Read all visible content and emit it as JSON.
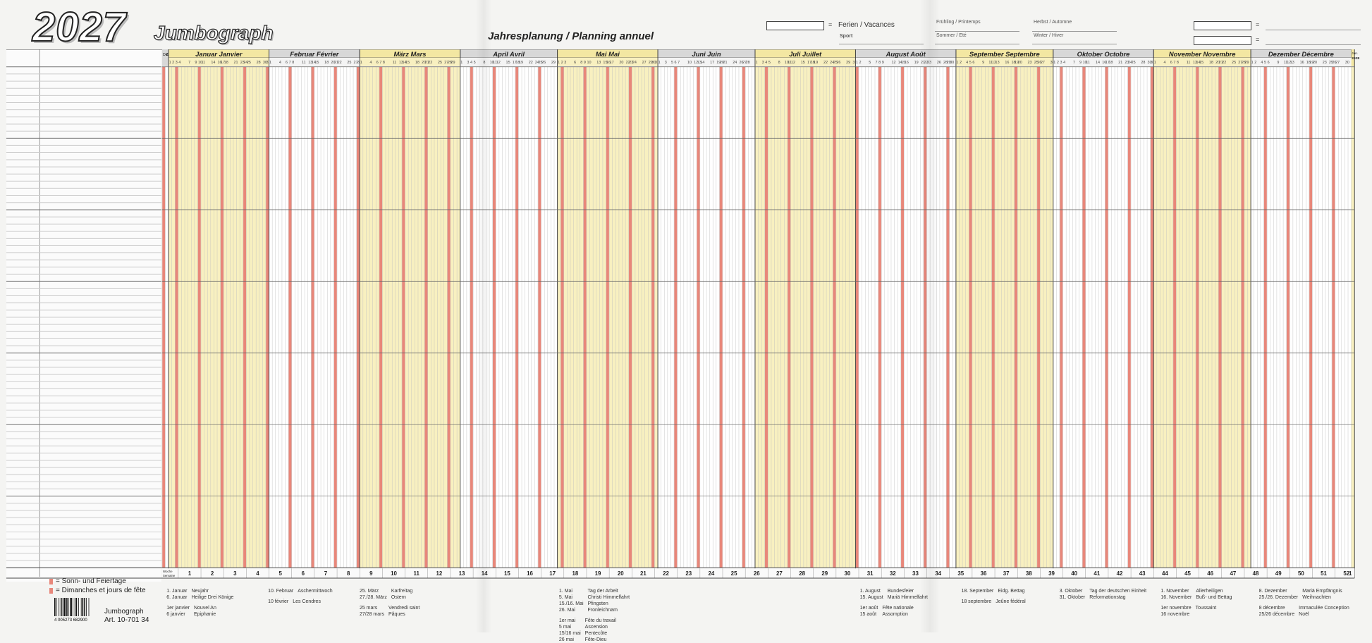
{
  "header": {
    "year": "2027",
    "brand": "Jumbograph",
    "subtitle": "Jahresplanung / Planning annuel",
    "legend_ferien": "Ferien / Vacances",
    "legend_sport": "Sport",
    "season_spring": "Frühling / Printemps",
    "season_summer": "Sommer / Eté",
    "season_autumn": "Herbst / Automne",
    "season_winter": "Winter / Hiver",
    "eq": "="
  },
  "prev_month": "Dez. Déc.",
  "prev_year": "2026",
  "next_month": "Jan.",
  "next_year": "2028",
  "months": [
    {
      "de": "Januar",
      "fr": "Janvier",
      "days": 31,
      "startDow": 4
    },
    {
      "de": "Februar",
      "fr": "Février",
      "days": 28,
      "startDow": 0
    },
    {
      "de": "März",
      "fr": "Mars",
      "days": 31,
      "startDow": 0
    },
    {
      "de": "April",
      "fr": "Avril",
      "days": 30,
      "startDow": 3
    },
    {
      "de": "Mai",
      "fr": "Mai",
      "days": 31,
      "startDow": 5
    },
    {
      "de": "Juni",
      "fr": "Juin",
      "days": 30,
      "startDow": 1
    },
    {
      "de": "Juli",
      "fr": "Juillet",
      "days": 31,
      "startDow": 3
    },
    {
      "de": "August",
      "fr": "Août",
      "days": 31,
      "startDow": 6
    },
    {
      "de": "September",
      "fr": "Septembre",
      "days": 30,
      "startDow": 2
    },
    {
      "de": "Oktober",
      "fr": "Octobre",
      "days": 31,
      "startDow": 4
    },
    {
      "de": "November",
      "fr": "Novembre",
      "days": 30,
      "startDow": 0
    },
    {
      "de": "Dezember",
      "fr": "Décembre",
      "days": 31,
      "startDow": 2
    }
  ],
  "colors": {
    "yellow": "#f8f0c0",
    "gray": "#ececec",
    "white": "#ffffff",
    "red": "#e8877a",
    "header_yellow": "#f3e7a2",
    "header_gray": "#d8d8d8",
    "line": "#777777"
  },
  "week_label": "Woche Semaine",
  "holidays": [
    {
      "de_date": "1. Januar\n6. Januar",
      "de_name": "Neujahr\nHeilige Drei Könige",
      "fr_date": "1er janvier\n6 janvier",
      "fr_name": "Nouvel An\nEpiphanie"
    },
    {
      "de_date": "10. Februar",
      "de_name": "Aschermittwoch",
      "fr_date": "10 février",
      "fr_name": "Les Cendres"
    },
    {
      "de_date": "25. März\n27./28. März",
      "de_name": "Karfreitag\nOstern",
      "fr_date": "25 mars\n27/28 mars",
      "fr_name": "Vendredi saint\nPâques"
    },
    {
      "de_date": "1. Mai\n5. Mai\n15./16. Mai\n26. Mai",
      "de_name": "Tag der Arbeit\nChristi Himmelfahrt\nPfingsten\nFronleichnam",
      "fr_date": "1er mai\n5 mai\n15/16 mai\n26 mai",
      "fr_name": "Fête du travail\nAscension\nPentecôte\nFête-Dieu"
    },
    {
      "de_date": "1. August\n15. August",
      "de_name": "Bundesfeier\nMariä Himmelfahrt",
      "fr_date": "1er août\n15 août",
      "fr_name": "Fête nationale\nAssomption"
    },
    {
      "de_date": "18. September",
      "de_name": "Eidg. Bettag",
      "fr_date": "18 septembre",
      "fr_name": "Jeûne fédéral"
    },
    {
      "de_date": "3. Oktober\n31. Oktober",
      "de_name": "Tag der deutschen Einheit\nReformationstag",
      "fr_date": "",
      "fr_name": ""
    },
    {
      "de_date": "1. November\n16. November",
      "de_name": "Allerheiligen\nBuß- und Bettag",
      "fr_date": "1er novembre\n16 novembre",
      "fr_name": "Toussaint"
    },
    {
      "de_date": "8. Dezember\n25./26. Dezember",
      "de_name": "Mariä Empfängnis\nWeihnachten",
      "fr_date": "8 décembre\n25/26 décembre",
      "fr_name": "Immaculée Conception\nNoël"
    }
  ],
  "legend": {
    "line1": "= Sonn- und Feiertage",
    "line2": "= Dimanches et jours de fête"
  },
  "article": {
    "name": "Jumbograph",
    "number": "Art. 10-701 34",
    "barcode": "4 005273 682900"
  }
}
